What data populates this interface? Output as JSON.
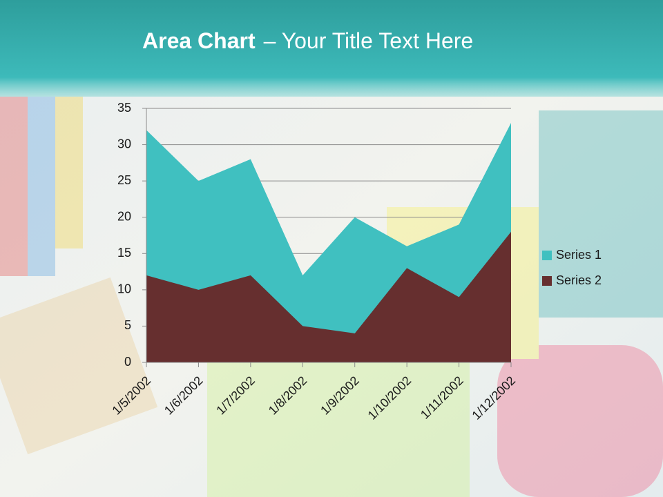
{
  "chart_data": {
    "type": "area",
    "title": {
      "bold": "Area Chart",
      "rest": "– Your Title Text Here"
    },
    "categories": [
      "1/5/2002",
      "1/6/2002",
      "1/7/2002",
      "1/8/2002",
      "1/9/2002",
      "1/10/2002",
      "1/11/2002",
      "1/12/2002"
    ],
    "series": [
      {
        "name": "Series 1",
        "color": "#40c0c0",
        "values": [
          32,
          25,
          28,
          12,
          20,
          16,
          19,
          33
        ]
      },
      {
        "name": "Series 2",
        "color": "#662f2f",
        "values": [
          12,
          10,
          12,
          5,
          4,
          13,
          9,
          18
        ]
      }
    ],
    "ylim": [
      0,
      35
    ],
    "yticks": [
      0,
      5,
      10,
      15,
      20,
      25,
      30,
      35
    ],
    "grid": true,
    "legend": "right"
  }
}
